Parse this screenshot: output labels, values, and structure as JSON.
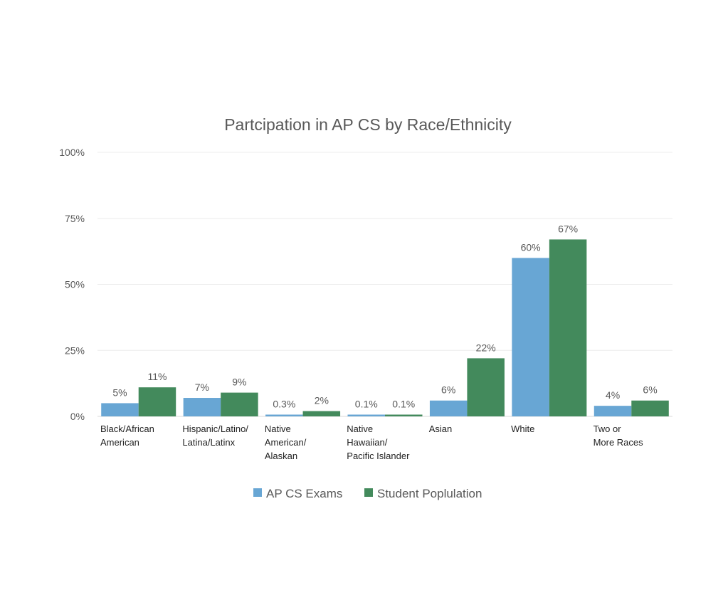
{
  "chart_data": {
    "type": "bar",
    "title": "Partcipation in AP CS by Race/Ethnicity",
    "xlabel": "",
    "ylabel": "",
    "ylim": [
      0,
      100
    ],
    "y_ticks": [
      "0%",
      "25%",
      "50%",
      "75%",
      "100%"
    ],
    "grid": true,
    "legend_position": "bottom",
    "categories": [
      [
        "Black/African",
        "American"
      ],
      [
        "Hispanic/Latino/",
        "Latina/Latinx"
      ],
      [
        "Native",
        "American/",
        "Alaskan"
      ],
      [
        "Native",
        "Hawaiian/",
        "Pacific Islander"
      ],
      [
        "Asian"
      ],
      [
        "White"
      ],
      [
        "Two or",
        "More Races"
      ]
    ],
    "series": [
      {
        "name": "AP CS Exams",
        "color": "#68a6d4",
        "values": [
          5,
          7,
          0.3,
          0.1,
          6,
          60,
          4
        ],
        "labels": [
          "5%",
          "7%",
          "0.3%",
          "0.1%",
          "6%",
          "60%",
          "4%"
        ]
      },
      {
        "name": "Student Poplulation",
        "color": "#438a5c",
        "values": [
          11,
          9,
          2,
          0.1,
          22,
          67,
          6
        ],
        "labels": [
          "11%",
          "9%",
          "2%",
          "0.1%",
          "22%",
          "67%",
          "6%"
        ]
      }
    ]
  }
}
